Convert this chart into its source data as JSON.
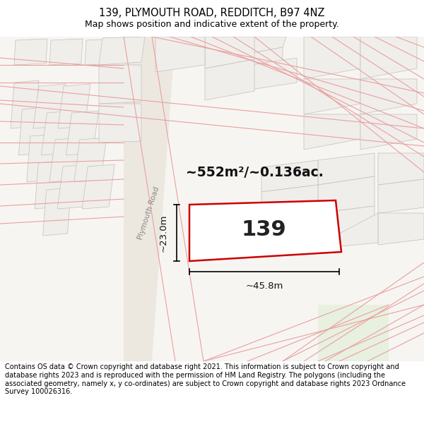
{
  "title": "139, PLYMOUTH ROAD, REDDITCH, B97 4NZ",
  "subtitle": "Map shows position and indicative extent of the property.",
  "footer": "Contains OS data © Crown copyright and database right 2021. This information is subject to Crown copyright and database rights 2023 and is reproduced with the permission of HM Land Registry. The polygons (including the associated geometry, namely x, y co-ordinates) are subject to Crown copyright and database rights 2023 Ordnance Survey 100026316.",
  "map_bg": "#f5f3f0",
  "plot_fill": "#f0eee8",
  "plot_outline": "#c8c4bc",
  "road_fill": "#ffffff",
  "prop_fill": "#ffffff",
  "prop_edge": "#cc0000",
  "prop_edge_width": 1.8,
  "road_lines_color": "#e8a0a0",
  "property_label": "139",
  "area_text": "~552m²/~0.136ac.",
  "dim_width": "~45.8m",
  "dim_height": "~23.0m",
  "title_fontsize": 10.5,
  "subtitle_fontsize": 9,
  "footer_fontsize": 7,
  "figsize": [
    6.0,
    6.25
  ],
  "dpi": 100
}
